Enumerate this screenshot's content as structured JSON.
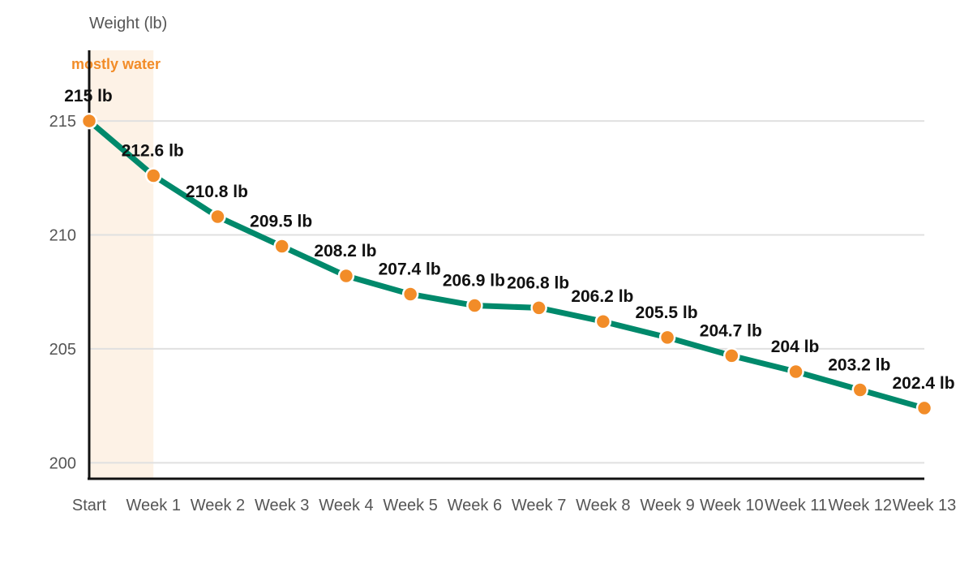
{
  "chart_data": {
    "type": "line",
    "ylabel": "Weight (lb)",
    "categories": [
      "Start",
      "Week 1",
      "Week 2",
      "Week 3",
      "Week 4",
      "Week 5",
      "Week 6",
      "Week 7",
      "Week 8",
      "Week 9",
      "Week 10",
      "Week 11",
      "Week 12",
      "Week 13"
    ],
    "values": [
      215,
      212.6,
      210.8,
      209.5,
      208.2,
      207.4,
      206.9,
      206.8,
      206.2,
      205.5,
      204.7,
      204,
      203.2,
      202.4
    ],
    "data_labels": [
      "215 lb",
      "212.6 lb",
      "210.8 lb",
      "209.5 lb",
      "208.2 lb",
      "207.4 lb",
      "206.9 lb",
      "206.8 lb",
      "206.2 lb",
      "205.5 lb",
      "204.7 lb",
      "204 lb",
      "203.2 lb",
      "202.4 lb"
    ],
    "yticks": [
      200,
      205,
      210,
      215
    ],
    "ylim": [
      199.3,
      218.1
    ],
    "grid": true,
    "highlight_band": {
      "label": "mostly water",
      "from": "Start",
      "to": "Week 1"
    },
    "colors": {
      "line": "#00896b",
      "marker": "#f28c28",
      "band": "#fdf2e6",
      "band_label": "#f28c28",
      "grid": "#e0e0e0",
      "axis": "#111111"
    }
  }
}
